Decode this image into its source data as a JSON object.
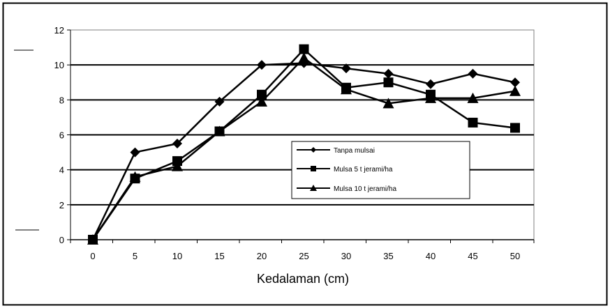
{
  "chart_data": {
    "type": "line",
    "title": "",
    "xlabel": "Kedalaman (cm)",
    "ylabel": "",
    "categories": [
      "0",
      "5",
      "10",
      "15",
      "20",
      "25",
      "30",
      "35",
      "40",
      "45",
      "50"
    ],
    "ylim": [
      0,
      12
    ],
    "yticks": [
      "0",
      "2",
      "4",
      "6",
      "8",
      "10",
      "12"
    ],
    "grid": true,
    "legend_position": "right",
    "series": [
      {
        "name": "Tanpa mulsai",
        "marker": "diamond",
        "values": [
          0,
          5.0,
          5.5,
          7.9,
          10.0,
          10.1,
          9.8,
          9.5,
          8.9,
          9.5,
          9.0
        ]
      },
      {
        "name": "Mulsa 5 t jerami/ha",
        "marker": "square",
        "values": [
          0,
          3.5,
          4.5,
          6.2,
          8.3,
          10.9,
          8.7,
          9.0,
          8.3,
          6.7,
          6.4
        ]
      },
      {
        "name": "Mulsa 10 t jerami/ha",
        "marker": "triangle",
        "values": [
          0,
          3.6,
          4.2,
          6.2,
          7.9,
          10.4,
          8.6,
          7.8,
          8.1,
          8.1,
          8.5
        ]
      }
    ]
  }
}
